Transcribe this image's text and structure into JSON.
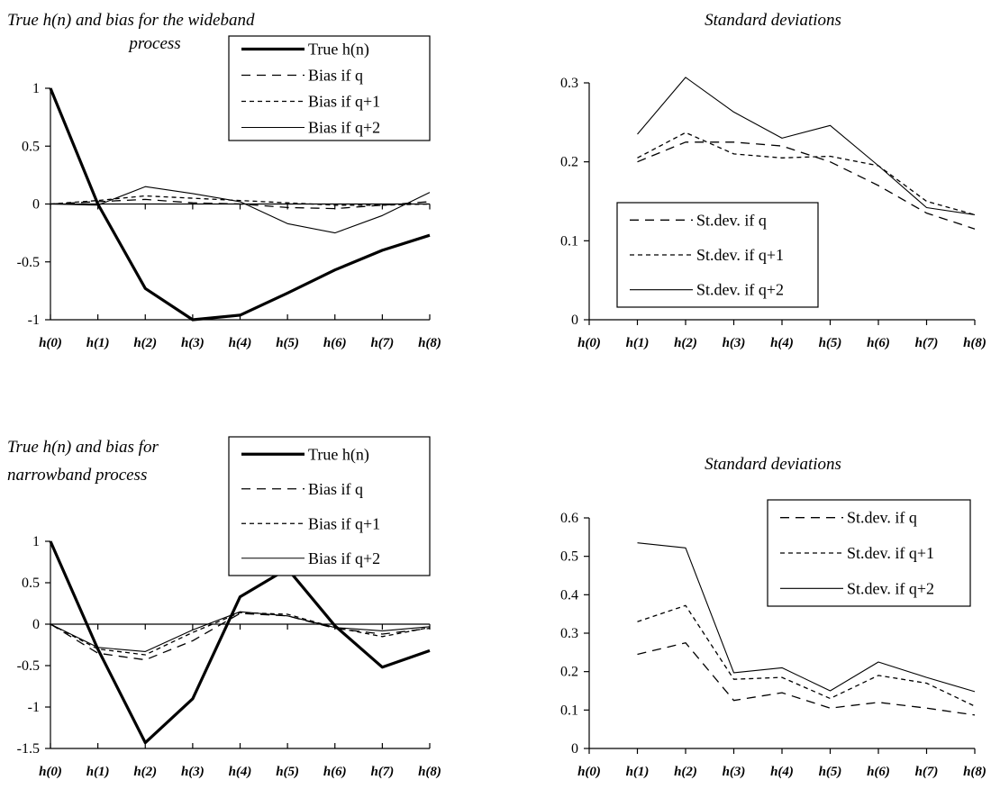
{
  "colors": {
    "ink": "#000000",
    "background": "#ffffff"
  },
  "legend_common": {
    "bias": [
      "True h(n)",
      "Bias if q",
      "Bias if q+1",
      "Bias if q+2"
    ],
    "std": [
      "St.dev. if q",
      "St.dev. if q+1",
      "St.dev. if q+2"
    ]
  },
  "chart_data": [
    {
      "id": "wideband-bias",
      "type": "line",
      "title": [
        "True h(n) and bias for the wideband",
        "process"
      ],
      "categories": [
        "h(0)",
        "h(1)",
        "h(2)",
        "h(3)",
        "h(4)",
        "h(5)",
        "h(6)",
        "h(7)",
        "h(8)"
      ],
      "ylim": [
        -1,
        1
      ],
      "yticks": [
        -1,
        -0.5,
        0,
        0.5,
        1
      ],
      "ytick_labels": [
        "-1",
        "-0.5",
        "0",
        "0.5",
        "1"
      ],
      "grid": false,
      "legend": "top-right",
      "series": [
        {
          "name": "True h(n)",
          "style": "thick",
          "values": [
            1,
            0,
            -0.73,
            -1.0,
            -0.96,
            -0.77,
            -0.57,
            -0.4,
            -0.27
          ]
        },
        {
          "name": "Bias if q",
          "style": "longdash",
          "values": [
            0,
            0.02,
            0.04,
            0.01,
            0.0,
            -0.03,
            -0.04,
            -0.01,
            0.02
          ]
        },
        {
          "name": "Bias if q+1",
          "style": "shortdash",
          "values": [
            0,
            0.03,
            0.07,
            0.05,
            0.03,
            0.01,
            -0.01,
            -0.01,
            0.0
          ]
        },
        {
          "name": "Bias if q+2",
          "style": "thin",
          "values": [
            0,
            -0.01,
            0.15,
            0.09,
            0.02,
            -0.17,
            -0.25,
            -0.1,
            0.1
          ]
        }
      ]
    },
    {
      "id": "wideband-std",
      "type": "line",
      "title": [
        "Standard deviations"
      ],
      "categories": [
        "h(0)",
        "h(1)",
        "h(2)",
        "h(3)",
        "h(4)",
        "h(5)",
        "h(6)",
        "h(7)",
        "h(8)"
      ],
      "ylim": [
        0,
        0.3
      ],
      "yticks": [
        0,
        0.1,
        0.2,
        0.3
      ],
      "ytick_labels": [
        "0",
        "0.1",
        "0.2",
        "0.3"
      ],
      "grid": false,
      "legend": "bottom-left",
      "series": [
        {
          "name": "St.dev. if q",
          "style": "longdash",
          "values": [
            null,
            0.2,
            0.225,
            0.225,
            0.22,
            0.2,
            0.17,
            0.135,
            0.115
          ]
        },
        {
          "name": "St.dev. if q+1",
          "style": "shortdash",
          "values": [
            null,
            0.205,
            0.237,
            0.21,
            0.205,
            0.207,
            0.195,
            0.15,
            0.133
          ]
        },
        {
          "name": "St.dev. if q+2",
          "style": "thin",
          "values": [
            null,
            0.235,
            0.307,
            0.263,
            0.23,
            0.246,
            0.195,
            0.142,
            0.133
          ]
        }
      ]
    },
    {
      "id": "narrowband-bias",
      "type": "line",
      "title": [
        "True h(n) and bias for",
        "narrowband process"
      ],
      "categories": [
        "h(0)",
        "h(1)",
        "h(2)",
        "h(3)",
        "h(4)",
        "h(5)",
        "h(6)",
        "h(7)",
        "h(8)"
      ],
      "ylim": [
        -1.5,
        1
      ],
      "yticks": [
        -1.5,
        -1,
        -0.5,
        0,
        0.5,
        1
      ],
      "ytick_labels": [
        "-1.5",
        "-1",
        "-0.5",
        "0",
        "0.5",
        "1"
      ],
      "grid": false,
      "legend": "top-right",
      "series": [
        {
          "name": "True h(n)",
          "style": "thick",
          "values": [
            1,
            -0.3,
            -1.43,
            -0.9,
            0.33,
            0.67,
            -0.02,
            -0.52,
            -0.32
          ]
        },
        {
          "name": "Bias if q",
          "style": "longdash",
          "values": [
            0,
            -0.35,
            -0.43,
            -0.2,
            0.13,
            0.1,
            -0.05,
            -0.12,
            -0.05
          ]
        },
        {
          "name": "Bias if q+1",
          "style": "shortdash",
          "values": [
            0,
            -0.3,
            -0.37,
            -0.1,
            0.14,
            0.12,
            -0.04,
            -0.15,
            -0.04
          ]
        },
        {
          "name": "Bias if q+2",
          "style": "thin",
          "values": [
            0,
            -0.28,
            -0.33,
            -0.07,
            0.15,
            0.1,
            -0.04,
            -0.08,
            -0.03
          ]
        }
      ]
    },
    {
      "id": "narrowband-std",
      "type": "line",
      "title": [
        "Standard deviations"
      ],
      "categories": [
        "h(0)",
        "h(1)",
        "h(2)",
        "h(3)",
        "h(4)",
        "h(5)",
        "h(6)",
        "h(7)",
        "h(8)"
      ],
      "ylim": [
        0,
        0.6
      ],
      "yticks": [
        0,
        0.1,
        0.2,
        0.3,
        0.4,
        0.5,
        0.6
      ],
      "ytick_labels": [
        "0",
        "0.1",
        "0.2",
        "0.3",
        "0.4",
        "0.5",
        "0.6"
      ],
      "grid": false,
      "legend": "top-right",
      "series": [
        {
          "name": "St.dev. if q",
          "style": "longdash",
          "values": [
            null,
            0.245,
            0.275,
            0.125,
            0.145,
            0.105,
            0.12,
            0.105,
            0.087
          ]
        },
        {
          "name": "St.dev. if q+1",
          "style": "shortdash",
          "values": [
            null,
            0.33,
            0.372,
            0.18,
            0.185,
            0.13,
            0.19,
            0.17,
            0.11
          ]
        },
        {
          "name": "St.dev. if q+2",
          "style": "thin",
          "values": [
            null,
            0.535,
            0.522,
            0.197,
            0.21,
            0.15,
            0.225,
            0.185,
            0.148
          ]
        }
      ]
    }
  ]
}
